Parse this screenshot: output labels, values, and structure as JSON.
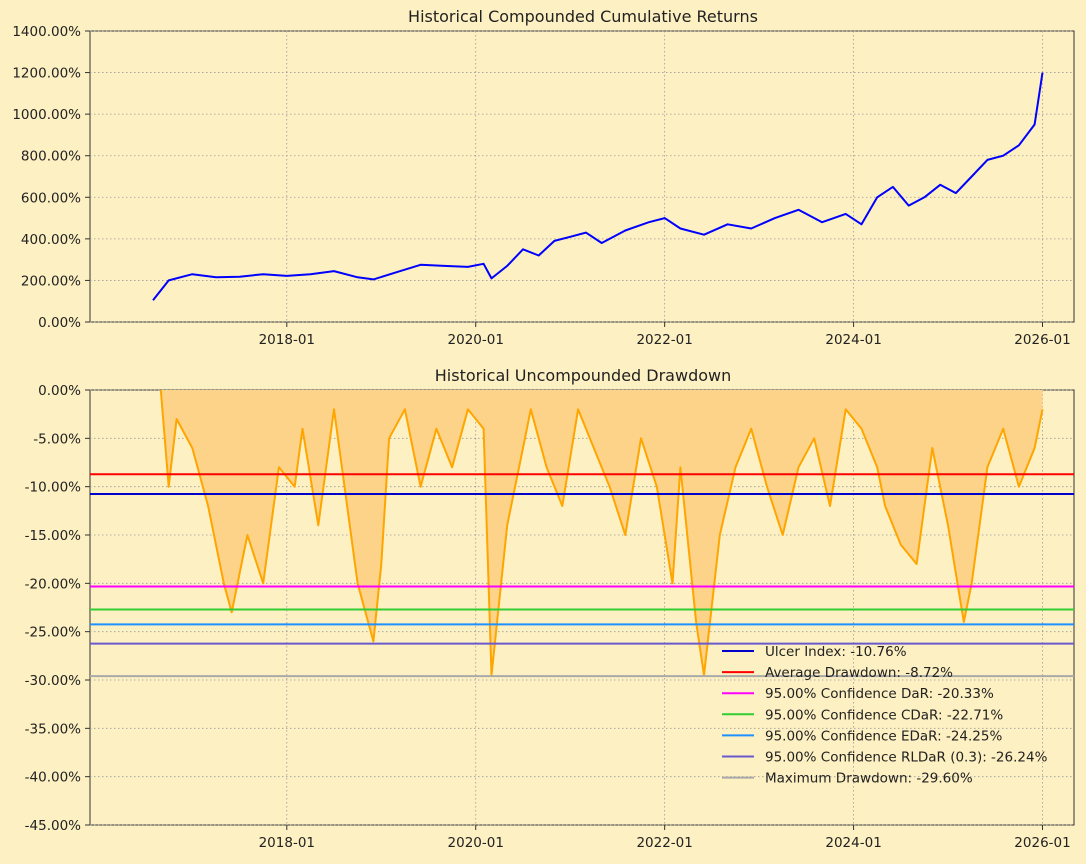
{
  "chart_data": [
    {
      "type": "line",
      "title": "Historical Compounded Cumulative Returns",
      "xlabel": "",
      "ylabel": "",
      "x_ticks": [
        "2018-01",
        "2020-01",
        "2022-01",
        "2024-01",
        "2026-01"
      ],
      "y_ticks": [
        "0.00%",
        "200.00%",
        "400.00%",
        "600.00%",
        "800.00%",
        "1000.00%",
        "1200.00%",
        "1400.00%"
      ],
      "ylim": [
        0,
        1400
      ],
      "grid": true,
      "line_color": "#0000ff",
      "series": [
        {
          "x": [
            "2016-08",
            "2016-10",
            "2017-01",
            "2017-04",
            "2017-07",
            "2017-10",
            "2018-01",
            "2018-04",
            "2018-07",
            "2018-10",
            "2018-12",
            "2019-03",
            "2019-06",
            "2019-09",
            "2019-12",
            "2020-02",
            "2020-03",
            "2020-05",
            "2020-07",
            "2020-09",
            "2020-11",
            "2021-01",
            "2021-03",
            "2021-05",
            "2021-08",
            "2021-11",
            "2022-01",
            "2022-03",
            "2022-06",
            "2022-09",
            "2022-12",
            "2023-03",
            "2023-06",
            "2023-09",
            "2023-12",
            "2024-02",
            "2024-04",
            "2024-06",
            "2024-08",
            "2024-10",
            "2024-12",
            "2025-02",
            "2025-04",
            "2025-06",
            "2025-08",
            "2025-10",
            "2025-12",
            "2026-01"
          ],
          "values": [
            105,
            200,
            230,
            215,
            218,
            230,
            222,
            230,
            245,
            215,
            205,
            240,
            275,
            270,
            265,
            280,
            210,
            270,
            350,
            320,
            390,
            410,
            430,
            380,
            440,
            480,
            500,
            450,
            420,
            470,
            450,
            500,
            540,
            480,
            520,
            470,
            600,
            650,
            560,
            600,
            660,
            620,
            700,
            780,
            800,
            850,
            950,
            1200
          ]
        }
      ]
    },
    {
      "type": "area",
      "title": "Historical Uncompounded Drawdown",
      "xlabel": "",
      "ylabel": "",
      "x_ticks": [
        "2018-01",
        "2020-01",
        "2022-01",
        "2024-01",
        "2026-01"
      ],
      "y_ticks": [
        "0.00%",
        "-5.00%",
        "-10.00%",
        "-15.00%",
        "-20.00%",
        "-25.00%",
        "-30.00%",
        "-35.00%",
        "-40.00%",
        "-45.00%"
      ],
      "ylim": [
        -45,
        0
      ],
      "grid": true,
      "legend_position": "bottom-right",
      "area_color": "#ffa500",
      "fill_color": "#fdd389",
      "series": [
        {
          "x": [
            "2016-09",
            "2016-10",
            "2016-11",
            "2017-01",
            "2017-03",
            "2017-05",
            "2017-06",
            "2017-08",
            "2017-10",
            "2017-12",
            "2018-02",
            "2018-03",
            "2018-05",
            "2018-07",
            "2018-08",
            "2018-10",
            "2018-12",
            "2019-01",
            "2019-02",
            "2019-04",
            "2019-06",
            "2019-08",
            "2019-10",
            "2019-12",
            "2020-02",
            "2020-03",
            "2020-05",
            "2020-07",
            "2020-08",
            "2020-10",
            "2020-12",
            "2021-02",
            "2021-04",
            "2021-06",
            "2021-08",
            "2021-10",
            "2021-12",
            "2022-02",
            "2022-03",
            "2022-05",
            "2022-06",
            "2022-08",
            "2022-10",
            "2022-12",
            "2023-02",
            "2023-04",
            "2023-06",
            "2023-08",
            "2023-10",
            "2023-12",
            "2024-02",
            "2024-04",
            "2024-05",
            "2024-07",
            "2024-09",
            "2024-11",
            "2025-01",
            "2025-03",
            "2025-04",
            "2025-06",
            "2025-08",
            "2025-10",
            "2025-12",
            "2026-01"
          ],
          "values": [
            0,
            -10,
            -3,
            -6,
            -12,
            -20,
            -23,
            -15,
            -20,
            -8,
            -10,
            -4,
            -14,
            -2,
            -8,
            -20,
            -26,
            -18,
            -5,
            -2,
            -10,
            -4,
            -8,
            -2,
            -4,
            -29.5,
            -14,
            -6,
            -2,
            -8,
            -12,
            -2,
            -6,
            -10,
            -15,
            -5,
            -10,
            -20,
            -8,
            -24,
            -29.5,
            -15,
            -8,
            -4,
            -10,
            -15,
            -8,
            -5,
            -12,
            -2,
            -4,
            -8,
            -12,
            -16,
            -18,
            -6,
            -14,
            -24,
            -20,
            -8,
            -4,
            -10,
            -6,
            -2
          ]
        }
      ],
      "reference_lines": [
        {
          "label": "Ulcer Index: -10.76%",
          "value": -10.76,
          "color": "#0000cd"
        },
        {
          "label": "Average Drawdown: -8.72%",
          "value": -8.72,
          "color": "#ff0000"
        },
        {
          "label": "95.00% Confidence DaR: -20.33%",
          "value": -20.33,
          "color": "#ff00ff"
        },
        {
          "label": "95.00% Confidence CDaR: -22.71%",
          "value": -22.71,
          "color": "#32cd32"
        },
        {
          "label": "95.00% Confidence EDaR: -24.25%",
          "value": -24.25,
          "color": "#1e90ff"
        },
        {
          "label": "95.00% Confidence RLDaR (0.3): -26.24%",
          "value": -26.24,
          "color": "#6a5acd"
        },
        {
          "label": "Maximum Drawdown: -29.60%",
          "value": -29.6,
          "color": "#a9a9a9"
        }
      ]
    }
  ]
}
